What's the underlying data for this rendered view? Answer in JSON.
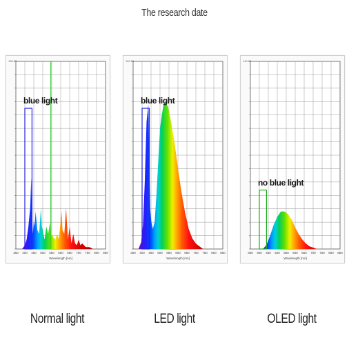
{
  "title": "The research date",
  "colors": {
    "grid": "#999999",
    "frame": "#555555",
    "blue_box": "#2222dd",
    "green_box": "#22aa22",
    "green_line": "#33cc33"
  },
  "chart_data": [
    {
      "type": "area",
      "caption": "Normal light",
      "xlabel": "Wavelength [nm]",
      "ylabel": "",
      "xlim": [
        350,
        850
      ],
      "ylim": [
        0,
        100
      ],
      "top_value": "100.00",
      "x_ticks": [
        "350",
        "400",
        "450",
        "500",
        "550",
        "600",
        "650",
        "700",
        "750",
        "800",
        "850"
      ],
      "callout": {
        "label": "blue light",
        "x_range": [
          400,
          440
        ],
        "height": 75,
        "color": "#2222dd"
      },
      "marker_line": {
        "x": 545,
        "color": "#33cc33"
      },
      "series": [
        {
          "x": [
            385,
            400,
            410,
            420,
            430,
            436,
            440,
            445,
            450,
            455,
            460,
            470,
            480,
            490,
            495,
            500,
            510,
            520,
            530,
            540,
            545,
            550,
            560,
            570,
            580,
            590,
            600,
            605,
            610,
            620,
            630,
            640,
            650,
            660,
            670,
            680,
            690,
            700,
            710,
            720,
            740,
            760,
            780
          ],
          "values": [
            0,
            2,
            5,
            12,
            22,
            38,
            18,
            8,
            15,
            12,
            20,
            10,
            8,
            22,
            12,
            10,
            5,
            12,
            8,
            14,
            6,
            8,
            6,
            5,
            8,
            5,
            15,
            20,
            10,
            8,
            22,
            5,
            12,
            3,
            8,
            3,
            2,
            5,
            2,
            3,
            1,
            1,
            0
          ]
        }
      ]
    },
    {
      "type": "area",
      "caption": "LED light",
      "xlabel": "Wavelength [nm]",
      "ylabel": "",
      "xlim": [
        350,
        850
      ],
      "ylim": [
        0,
        140
      ],
      "top_value": "140.00",
      "x_ticks": [
        "350",
        "400",
        "450",
        "500",
        "550",
        "600",
        "650",
        "700",
        "750",
        "800",
        "850"
      ],
      "callout": {
        "label": "blue light",
        "x_range": [
          400,
          440
        ],
        "height": 105,
        "color": "#2222dd"
      },
      "series": [
        {
          "x": [
            380,
            395,
            405,
            415,
            425,
            435,
            440,
            445,
            452,
            460,
            470,
            480,
            490,
            500,
            510,
            520,
            530,
            545,
            560,
            580,
            600,
            620,
            640,
            660,
            680,
            700,
            720,
            740
          ],
          "values": [
            0,
            5,
            18,
            50,
            95,
            108,
            70,
            30,
            20,
            15,
            20,
            40,
            65,
            90,
            100,
            108,
            110,
            106,
            96,
            80,
            60,
            42,
            27,
            15,
            8,
            4,
            2,
            0
          ]
        }
      ]
    },
    {
      "type": "area",
      "caption": "OLED light",
      "xlabel": "Wavelength [nm]",
      "ylabel": "",
      "xlim": [
        350,
        850
      ],
      "ylim": [
        0,
        140
      ],
      "top_value": "140.00",
      "x_ticks": [
        "350",
        "400",
        "450",
        "500",
        "550",
        "600",
        "650",
        "700",
        "750",
        "800",
        "850"
      ],
      "callout": {
        "label": "no blue light",
        "x_range": [
          400,
          440
        ],
        "height": 44,
        "color": "#22aa22"
      },
      "series": [
        {
          "x": [
            420,
            440,
            460,
            480,
            500,
            520,
            540,
            560,
            580,
            600,
            620,
            640,
            660,
            680,
            700,
            720
          ],
          "values": [
            0,
            3,
            10,
            18,
            24,
            28,
            28,
            26,
            22,
            16,
            11,
            7,
            4,
            2,
            1,
            0
          ]
        }
      ]
    }
  ]
}
